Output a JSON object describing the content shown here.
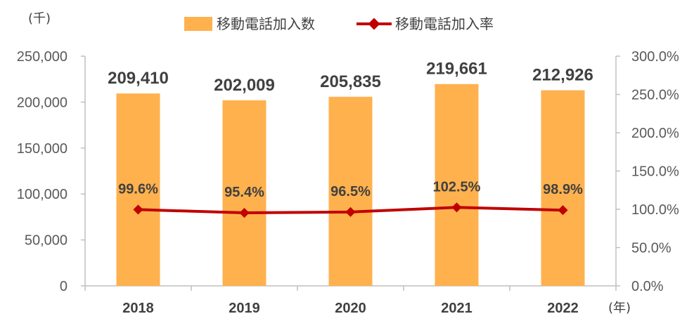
{
  "chart_data": {
    "type": "bar",
    "categories": [
      "2018",
      "2019",
      "2020",
      "2021",
      "2022"
    ],
    "series": [
      {
        "name": "移動電話加入数",
        "type": "bar",
        "axis": "left",
        "values": [
          209410,
          202009,
          205835,
          219661,
          212926
        ],
        "labels": [
          "209,410",
          "202,009",
          "205,835",
          "219,661",
          "212,926"
        ],
        "color": "#FFB14E"
      },
      {
        "name": "移動電話加入率",
        "type": "line",
        "axis": "right",
        "values": [
          99.6,
          95.4,
          96.5,
          102.5,
          98.9
        ],
        "labels": [
          "99.6%",
          "95.4%",
          "96.5%",
          "102.5%",
          "98.9%"
        ],
        "color": "#C00000"
      }
    ],
    "left_axis": {
      "unit_label": "(千)",
      "ylim": [
        0,
        250000
      ],
      "ticks": [
        0,
        50000,
        100000,
        150000,
        200000,
        250000
      ],
      "tick_labels": [
        "0",
        "50,000",
        "100,000",
        "150,000",
        "200,000",
        "250,000"
      ]
    },
    "right_axis": {
      "ylim": [
        0,
        300
      ],
      "ticks": [
        0,
        50,
        100,
        150,
        200,
        250,
        300
      ],
      "tick_labels": [
        "0.0%",
        "50.0%",
        "100.0%",
        "150.0%",
        "200.0%",
        "250.0%",
        "300.0%"
      ]
    },
    "x_unit_label": "(年)",
    "legend": "top-center",
    "grid": false
  }
}
